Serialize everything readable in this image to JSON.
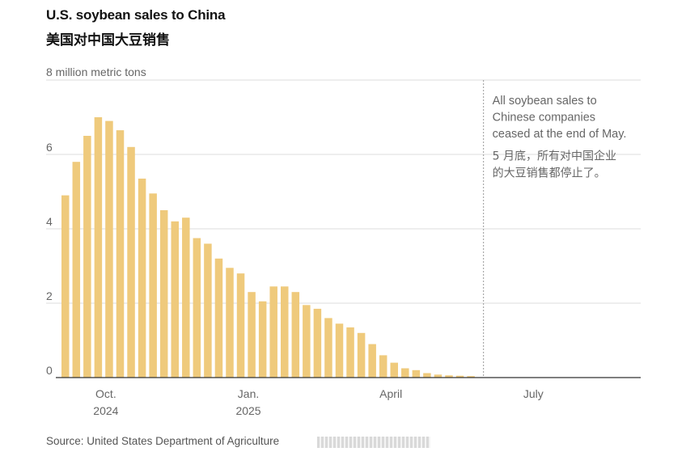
{
  "header": {
    "title_en": "U.S. soybean sales to China",
    "title_zh": "美国对中国大豆销售"
  },
  "footer": {
    "source": "Source: United States Department of Agriculture"
  },
  "colors": {
    "bar": "#efca7c",
    "grid": "#dddddd",
    "axis": "#333333",
    "text": "#666666"
  },
  "chart_data": {
    "type": "bar",
    "title": "U.S. soybean sales to China",
    "subtitle": "美国对中国大豆销售",
    "ylabel": "8 million metric tons",
    "xlabel": "",
    "ylim": [
      0,
      8
    ],
    "yticks": [
      {
        "value": 0,
        "label": "0"
      },
      {
        "value": 2,
        "label": "2"
      },
      {
        "value": 4,
        "label": "4"
      },
      {
        "value": 6,
        "label": "6"
      }
    ],
    "top_tick": {
      "value": 8,
      "label": "8 million metric tons"
    },
    "grid": true,
    "x_range_weeks": [
      0,
      52
    ],
    "xticks": [
      {
        "week": 3.7,
        "line1": "Oct.",
        "line2": "2024"
      },
      {
        "week": 16.7,
        "line1": "Jan.",
        "line2": "2025"
      },
      {
        "week": 29.7,
        "line1": "April",
        "line2": ""
      },
      {
        "week": 42.7,
        "line1": "July",
        "line2": ""
      }
    ],
    "values": [
      4.9,
      5.8,
      6.5,
      7.0,
      6.9,
      6.65,
      6.2,
      5.35,
      4.95,
      4.5,
      4.2,
      4.3,
      3.75,
      3.6,
      3.2,
      2.95,
      2.8,
      2.3,
      2.05,
      2.45,
      2.45,
      2.3,
      1.95,
      1.85,
      1.6,
      1.45,
      1.35,
      1.2,
      0.9,
      0.6,
      0.4,
      0.25,
      0.2,
      0.12,
      0.08,
      0.06,
      0.05,
      0.04
    ],
    "annotation": {
      "week": 38.5,
      "en_lines": [
        "All soybean sales to",
        "Chinese companies",
        "ceased at the end of May."
      ],
      "zh_lines": [
        "5 月底，所有对中国企业",
        "的大豆销售都停止了。"
      ]
    }
  }
}
